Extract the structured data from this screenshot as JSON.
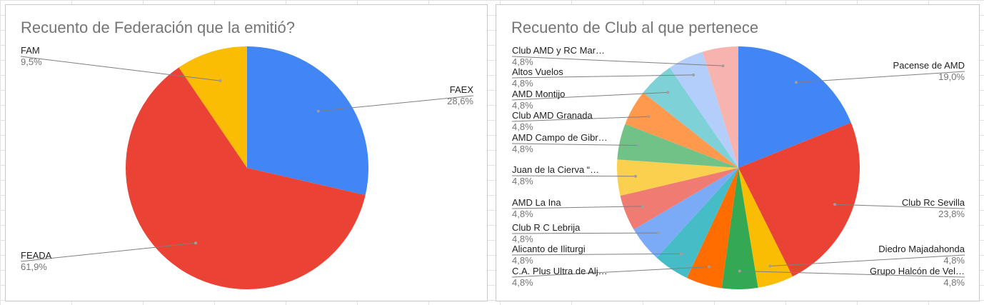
{
  "chart_data": [
    {
      "type": "pie",
      "title": "Recuento de Federación que la emitió?",
      "slices": [
        {
          "label": "FAEX",
          "value": 28.6,
          "pct_label": "28,6%",
          "color": "#4285f4"
        },
        {
          "label": "FEADA",
          "value": 61.9,
          "pct_label": "61,9%",
          "color": "#ea4335"
        },
        {
          "label": "FAM",
          "value": 9.5,
          "pct_label": "9,5%",
          "color": "#fbbc04"
        }
      ]
    },
    {
      "type": "pie",
      "title": "Recuento de Club al que pertenece",
      "slices": [
        {
          "label": "Pacense de AMD",
          "value": 19.0,
          "pct_label": "19,0%",
          "color": "#4285f4"
        },
        {
          "label": "Club Rc Sevilla",
          "value": 23.8,
          "pct_label": "23,8%",
          "color": "#ea4335"
        },
        {
          "label": "Diedro Majadahonda",
          "value": 4.8,
          "pct_label": "4,8%",
          "color": "#fbbc04"
        },
        {
          "label": "Grupo Halcón de Vel…",
          "value": 4.8,
          "pct_label": "4,8%",
          "color": "#34a853"
        },
        {
          "label": "C.A. Plus Ultra de Alj…",
          "value": 4.8,
          "pct_label": "4,8%",
          "color": "#ff6d01"
        },
        {
          "label": "Alicanto de Iliturgi",
          "value": 4.8,
          "pct_label": "4,8%",
          "color": "#46bdc6"
        },
        {
          "label": "Club R C Lebrija",
          "value": 4.8,
          "pct_label": "4,8%",
          "color": "#7baaf7"
        },
        {
          "label": "AMD La Ina",
          "value": 4.8,
          "pct_label": "4,8%",
          "color": "#f07b72"
        },
        {
          "label": "Juan de la Cierva “…",
          "value": 4.8,
          "pct_label": "4,8%",
          "color": "#fcd04f"
        },
        {
          "label": "AMD Campo de Gibr…",
          "value": 4.8,
          "pct_label": "4,8%",
          "color": "#71c287"
        },
        {
          "label": "Club AMD Granada",
          "value": 4.8,
          "pct_label": "4,8%",
          "color": "#ff994d"
        },
        {
          "label": "AMD Montijo",
          "value": 4.8,
          "pct_label": "4,8%",
          "color": "#7ed1d7"
        },
        {
          "label": "Altos Vuelos",
          "value": 4.8,
          "pct_label": "4,8%",
          "color": "#b3cefb"
        },
        {
          "label": "Club AMD y RC Mar…",
          "value": 4.8,
          "pct_label": "4,8%",
          "color": "#f7b4ae"
        }
      ]
    }
  ]
}
